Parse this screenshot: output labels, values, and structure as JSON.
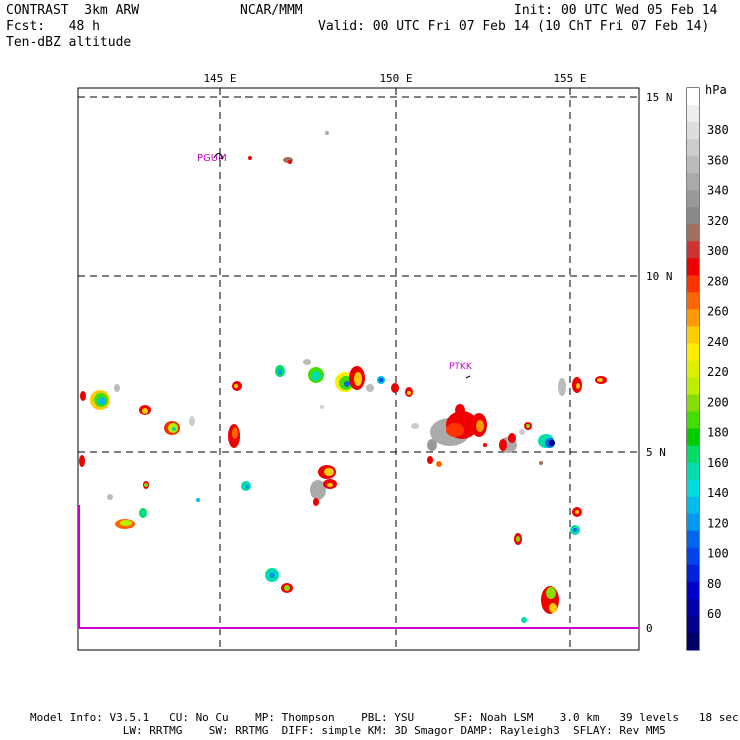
{
  "header": {
    "title_left": "CONTRAST  3km ARW",
    "fcst": "Fcst:   48 h",
    "field": "Ten-dBZ altitude",
    "center": "NCAR/MMM",
    "init": "Init: 00 UTC Wed 05 Feb 14",
    "valid": "Valid: 00 UTC Fri 07 Feb 14 (10 ChT Fri 07 Feb 14)"
  },
  "map": {
    "lon_labels": [
      "145 E",
      "150 E",
      "155 E"
    ],
    "lat_labels": [
      "15 N",
      "10 N",
      "5 N",
      "0"
    ],
    "stations": [
      "PGUM",
      "PTKK"
    ],
    "station_color": "#cc00cc",
    "equator_color": "#cc00cc"
  },
  "colorbar": {
    "unit": "hPa",
    "labels": [
      "380",
      "360",
      "340",
      "320",
      "300",
      "280",
      "260",
      "240",
      "220",
      "200",
      "180",
      "160",
      "140",
      "120",
      "100",
      "80",
      "60"
    ],
    "colors": [
      "#ffffff",
      "#eeeeee",
      "#dddddd",
      "#cccccc",
      "#bbbbbb",
      "#aaaaaa",
      "#999999",
      "#888888",
      "#a0705f",
      "#cc3333",
      "#ee0000",
      "#ff3300",
      "#ff6600",
      "#ff9900",
      "#ffcc00",
      "#ffee00",
      "#ddee00",
      "#bbee00",
      "#88dd00",
      "#44dd00",
      "#00cc00",
      "#00dd66",
      "#00ddaa",
      "#00dddd",
      "#00bbee",
      "#0099ee",
      "#0066ee",
      "#0044ee",
      "#0022dd",
      "#0000cc",
      "#0000aa",
      "#000088",
      "#000066"
    ]
  },
  "footer": {
    "line1": "Model Info: V3.5.1   CU: No Cu    MP: Thompson    PBL: YSU      SF: Noah LSM    3.0 km   39 levels   18 sec",
    "line2": "              LW: RRTMG    SW: RRTMG  DIFF: simple KM: 3D Smagor DAMP: Rayleigh3  SFLAY: Rev MM5"
  }
}
